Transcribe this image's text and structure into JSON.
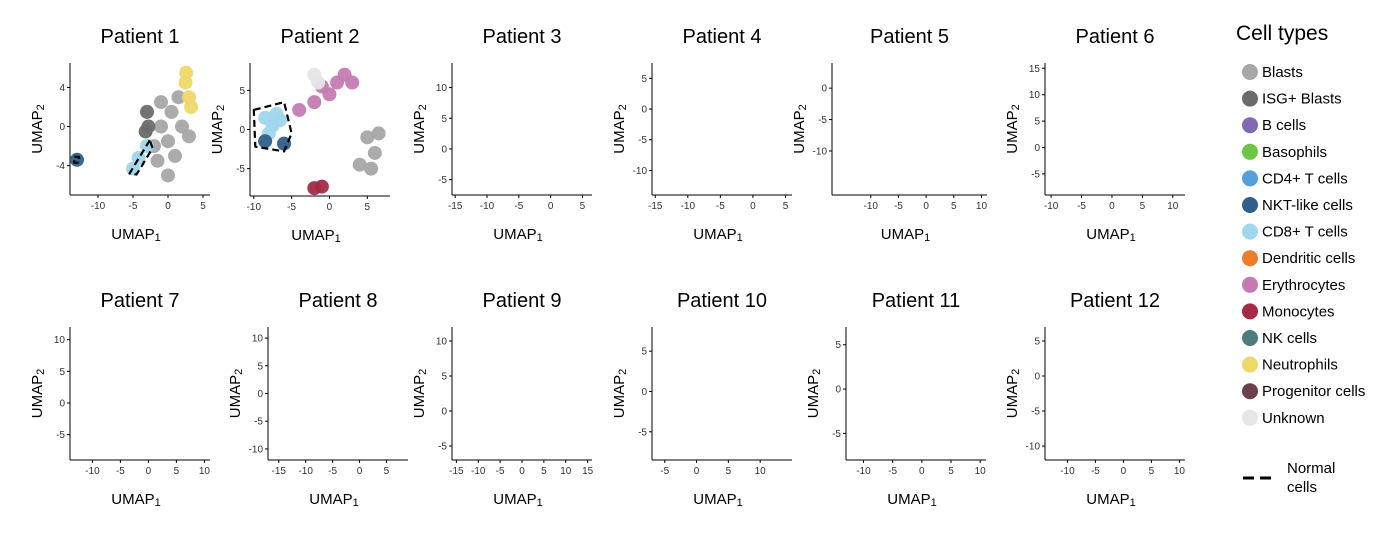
{
  "figure": {
    "x_axis_label": "UMAP",
    "x_axis_sub": "1",
    "y_axis_label": "UMAP",
    "y_axis_sub": "2"
  },
  "legend": {
    "title": "Cell types",
    "items": [
      {
        "name": "Blasts",
        "color": "#a7a7a7"
      },
      {
        "name": "ISG+ Blasts",
        "color": "#6b6b6b"
      },
      {
        "name": "B cells",
        "color": "#7f6bb5"
      },
      {
        "name": "Basophils",
        "color": "#6cc644"
      },
      {
        "name": "CD4+ T cells",
        "color": "#55a0dc"
      },
      {
        "name": "NKT-like cells",
        "color": "#2f5f8c"
      },
      {
        "name": "CD8+ T cells",
        "color": "#9fd7ec"
      },
      {
        "name": "Dendritic cells",
        "color": "#ee7d2b"
      },
      {
        "name": "Erythrocytes",
        "color": "#c57bb1"
      },
      {
        "name": "Monocytes",
        "color": "#a52a48"
      },
      {
        "name": "NK cells",
        "color": "#4b7b7b"
      },
      {
        "name": "Neutrophils",
        "color": "#eed868"
      },
      {
        "name": "Progenitor cells",
        "color": "#6a4148"
      },
      {
        "name": "Unknown",
        "color": "#e6e6e6"
      }
    ],
    "normal_cells_line1": "Normal",
    "normal_cells_line2": "cells"
  },
  "chart_data": [
    {
      "type": "scatter",
      "title": "Patient 1",
      "xticks": [
        -10,
        -5,
        0,
        5
      ],
      "yticks": [
        -4,
        0,
        4
      ],
      "xlim": [
        -14,
        6
      ],
      "ylim": [
        -7,
        6.5
      ],
      "clusters": [
        {
          "type": "Blasts",
          "points": [
            [
              0,
              -1.5
            ],
            [
              -1,
              0
            ],
            [
              1,
              -3
            ],
            [
              0.5,
              1.5
            ],
            [
              -2,
              -2
            ],
            [
              2,
              0
            ],
            [
              0,
              -5
            ],
            [
              -1,
              2.5
            ],
            [
              1.5,
              3
            ],
            [
              -1.5,
              -3.5
            ],
            [
              3,
              -1
            ]
          ]
        },
        {
          "type": "ISG+ Blasts",
          "points": [
            [
              -3,
              1.5
            ],
            [
              -2.8,
              0
            ],
            [
              -3.2,
              -0.5
            ]
          ]
        },
        {
          "type": "Neutrophils",
          "points": [
            [
              2.5,
              4.5
            ],
            [
              3,
              3
            ],
            [
              2.6,
              5.5
            ],
            [
              3.3,
              2
            ]
          ]
        },
        {
          "type": "CD8+ T cells",
          "points": [
            [
              -3,
              -2
            ],
            [
              -4.2,
              -3.2
            ],
            [
              -5,
              -4.3
            ]
          ]
        },
        {
          "type": "NKT-like cells",
          "points": [
            [
              -13,
              -3.4
            ]
          ]
        }
      ],
      "normal_regions": [
        [
          [
            -2.6,
            -1.4
          ],
          [
            -5.5,
            -4.8
          ],
          [
            -4.5,
            -4.9
          ],
          [
            -2.2,
            -2.2
          ]
        ],
        [
          [
            -13.4,
            -3.1
          ],
          [
            -12.7,
            -3.1
          ],
          [
            -12.7,
            -3.7
          ],
          [
            -13.4,
            -3.7
          ]
        ]
      ]
    },
    {
      "type": "scatter",
      "title": "Patient 2",
      "xticks": [
        -10,
        -5,
        0,
        5
      ],
      "yticks": [
        -5,
        0,
        5
      ],
      "xlim": [
        -10.5,
        8
      ],
      "ylim": [
        -8.5,
        8.5
      ],
      "clusters": [
        {
          "type": "CD8+ T cells",
          "points": [
            [
              -8.5,
              1.5
            ],
            [
              -7.5,
              0.5
            ],
            [
              -6.5,
              1.2
            ],
            [
              -8,
              -0.5
            ],
            [
              -7,
              2
            ]
          ]
        },
        {
          "type": "NKT-like cells",
          "points": [
            [
              -8.5,
              -1.5
            ],
            [
              -6,
              -1.8
            ]
          ]
        },
        {
          "type": "Erythrocytes",
          "points": [
            [
              -4,
              2.5
            ],
            [
              -2,
              3.5
            ],
            [
              0,
              4.5
            ],
            [
              1,
              6
            ],
            [
              2,
              7
            ],
            [
              3,
              6
            ],
            [
              -1,
              5.5
            ]
          ]
        },
        {
          "type": "Unknown",
          "points": [
            [
              -2,
              7
            ],
            [
              -1.5,
              6
            ]
          ]
        },
        {
          "type": "Blasts",
          "points": [
            [
              5,
              -1
            ],
            [
              6,
              -3
            ],
            [
              4,
              -4.5
            ],
            [
              6.5,
              -0.5
            ],
            [
              5.5,
              -5
            ]
          ]
        },
        {
          "type": "Monocytes",
          "points": [
            [
              -2,
              -7.5
            ],
            [
              -1,
              -7.3
            ]
          ]
        }
      ],
      "normal_regions": [
        [
          [
            -10,
            2.5
          ],
          [
            -6,
            3.5
          ],
          [
            -5,
            -0.5
          ],
          [
            -6,
            -2.8
          ],
          [
            -9.8,
            -2.2
          ]
        ]
      ]
    },
    {
      "type": "scatter",
      "title": "Patient 3",
      "xticks": [
        -15,
        -10,
        -5,
        0,
        5
      ],
      "yticks": [
        -5,
        0,
        5,
        10
      ],
      "xlim": [
        -15.5,
        6.5
      ],
      "ylim": [
        -7.5,
        14
      ]
    },
    {
      "type": "scatter",
      "title": "Patient 4",
      "xticks": [
        -15,
        -10,
        -5,
        0,
        5
      ],
      "yticks": [
        -10,
        -5,
        0,
        5
      ],
      "xlim": [
        -15.5,
        6
      ],
      "ylim": [
        -14,
        7.5
      ]
    },
    {
      "type": "scatter",
      "title": "Patient 5",
      "xticks": [
        -10,
        -5,
        0,
        5,
        10
      ],
      "yticks": [
        -10,
        -5,
        0
      ],
      "xlim": [
        -17,
        11
      ],
      "ylim": [
        -17,
        4
      ]
    },
    {
      "type": "scatter",
      "title": "Patient 6",
      "xticks": [
        -10,
        -5,
        0,
        5,
        10
      ],
      "yticks": [
        -5,
        0,
        5,
        10,
        15
      ],
      "xlim": [
        -11,
        12
      ],
      "ylim": [
        -9,
        16
      ]
    },
    {
      "type": "scatter",
      "title": "Patient 7",
      "xticks": [
        -10,
        -5,
        0,
        5,
        10
      ],
      "yticks": [
        -5,
        0,
        5,
        10
      ],
      "xlim": [
        -14,
        11
      ],
      "ylim": [
        -9,
        12
      ]
    },
    {
      "type": "scatter",
      "title": "Patient 8",
      "xticks": [
        -15,
        -10,
        -5,
        0,
        5
      ],
      "yticks": [
        -10,
        -5,
        0,
        5,
        10
      ],
      "xlim": [
        -17,
        9
      ],
      "ylim": [
        -12,
        12
      ]
    },
    {
      "type": "scatter",
      "title": "Patient 9",
      "xticks": [
        -15,
        -10,
        -5,
        0,
        5,
        10,
        15
      ],
      "yticks": [
        -5,
        0,
        5,
        10
      ],
      "xlim": [
        -16,
        16
      ],
      "ylim": [
        -7,
        12
      ]
    },
    {
      "type": "scatter",
      "title": "Patient 10",
      "xticks": [
        -5,
        0,
        5,
        10
      ],
      "yticks": [
        -5,
        0,
        5
      ],
      "xlim": [
        -7,
        15
      ],
      "ylim": [
        -8.5,
        8
      ]
    },
    {
      "type": "scatter",
      "title": "Patient 11",
      "xticks": [
        -10,
        -5,
        0,
        5,
        10
      ],
      "yticks": [
        -5,
        0,
        5
      ],
      "xlim": [
        -13,
        11
      ],
      "ylim": [
        -8,
        7
      ]
    },
    {
      "type": "scatter",
      "title": "Patient 12",
      "xticks": [
        -10,
        -5,
        0,
        5,
        10
      ],
      "yticks": [
        -10,
        -5,
        0,
        5
      ],
      "xlim": [
        -14,
        11
      ],
      "ylim": [
        -12,
        7
      ]
    }
  ]
}
